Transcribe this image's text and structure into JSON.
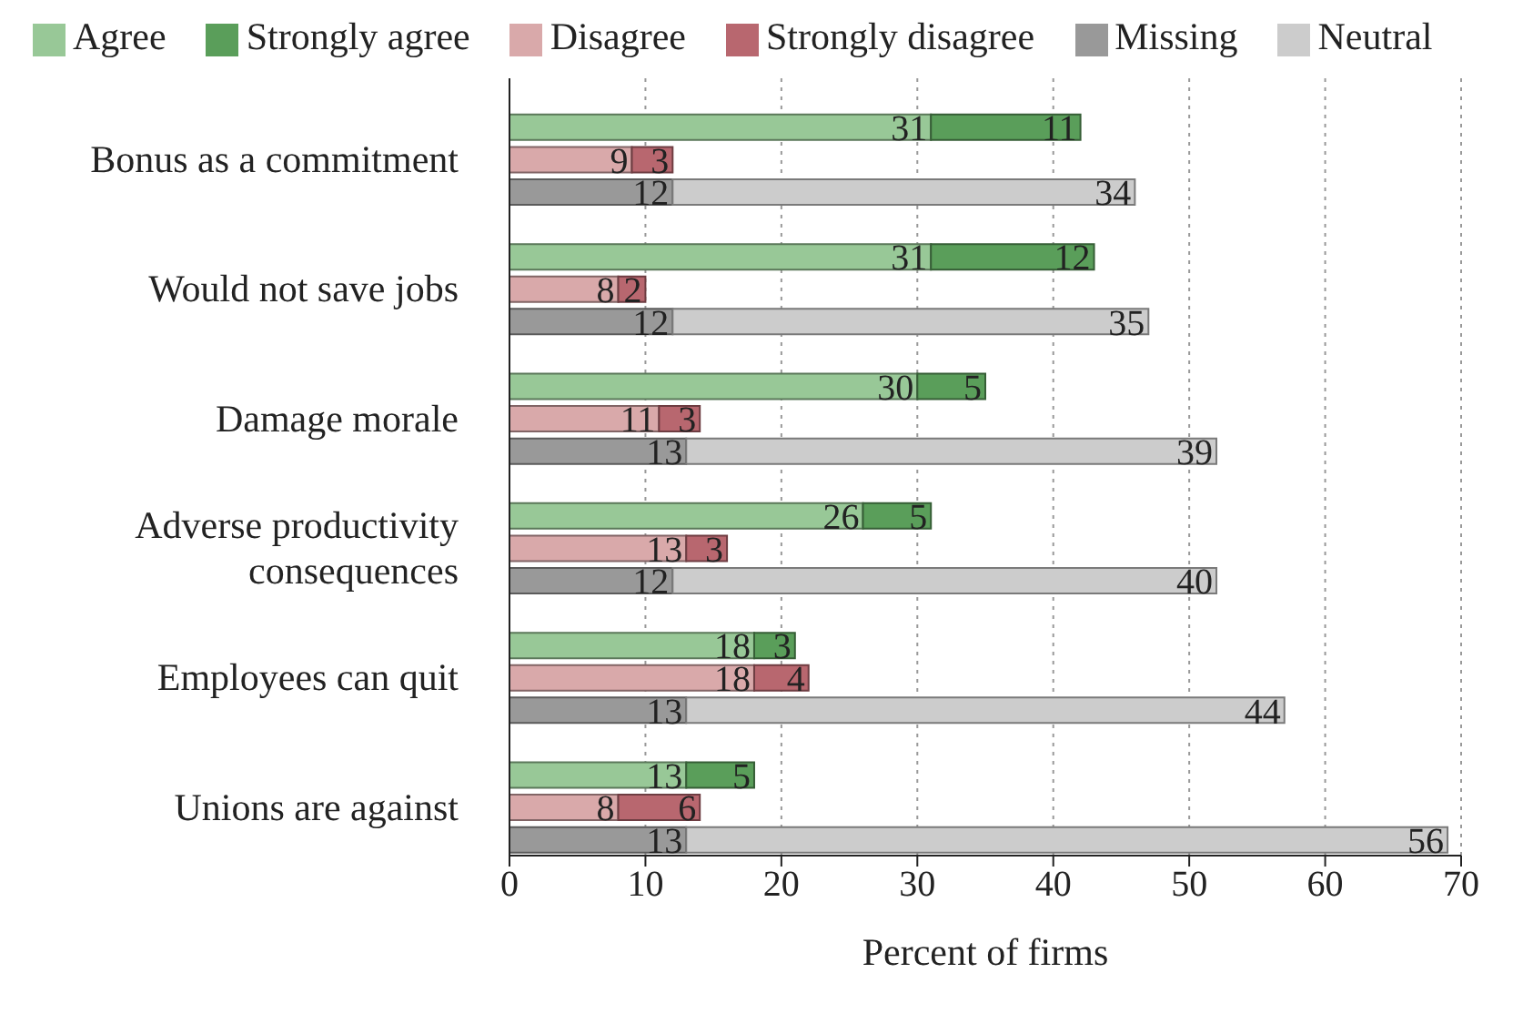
{
  "chart_data": {
    "type": "bar",
    "orientation": "horizontal",
    "stacked": true,
    "xlabel": "Percent of firms",
    "categories": [
      null,
      null,
      "Bonus as a commitment",
      null,
      null,
      null,
      "Would not save jobs",
      null,
      null,
      null,
      "Damage morale",
      null,
      null,
      null,
      "Adverse productivity consequences",
      null,
      null,
      null,
      "Employees can quit",
      null,
      null,
      null,
      "Unions are against",
      null
    ],
    "series": [
      {
        "name": "Agree",
        "color": "#98c897",
        "values": [
          null,
          31,
          null,
          null,
          null,
          31,
          null,
          null,
          null,
          30,
          null,
          null,
          null,
          26,
          null,
          null,
          null,
          18,
          null,
          null,
          null,
          13,
          null,
          null
        ]
      },
      {
        "name": "Strongly agree",
        "color": "#5a9e5a",
        "values": [
          null,
          11,
          null,
          null,
          null,
          12,
          null,
          null,
          null,
          5,
          null,
          null,
          null,
          5,
          null,
          null,
          null,
          3,
          null,
          null,
          null,
          5,
          null,
          null
        ]
      },
      {
        "name": "Disagree",
        "color": "#d9a9aa",
        "values": [
          null,
          null,
          9,
          null,
          null,
          null,
          8,
          null,
          null,
          null,
          11,
          null,
          null,
          null,
          13,
          null,
          null,
          null,
          18,
          null,
          null,
          null,
          8,
          null
        ]
      },
      {
        "name": "Strongly disagree",
        "color": "#b8676f",
        "values": [
          null,
          null,
          3,
          null,
          null,
          null,
          2,
          null,
          null,
          null,
          3,
          null,
          null,
          null,
          3,
          null,
          null,
          null,
          4,
          null,
          null,
          null,
          6,
          null
        ]
      },
      {
        "name": "Missing",
        "color": "#999999",
        "values": [
          null,
          null,
          null,
          12,
          null,
          null,
          null,
          12,
          null,
          null,
          null,
          13,
          null,
          null,
          null,
          12,
          null,
          null,
          null,
          13,
          null,
          null,
          null,
          13
        ]
      },
      {
        "name": "Neutral",
        "color": "#cccccc",
        "values": [
          null,
          null,
          null,
          34,
          null,
          null,
          null,
          35,
          null,
          null,
          null,
          39,
          null,
          null,
          null,
          40,
          null,
          null,
          null,
          44,
          null,
          null,
          null,
          56
        ]
      }
    ],
    "xlim": [
      0,
      70
    ],
    "xticks": [
      0,
      10,
      20,
      30,
      40,
      50,
      60,
      70
    ],
    "grid": "x",
    "legend": "top",
    "data_labels": true
  }
}
